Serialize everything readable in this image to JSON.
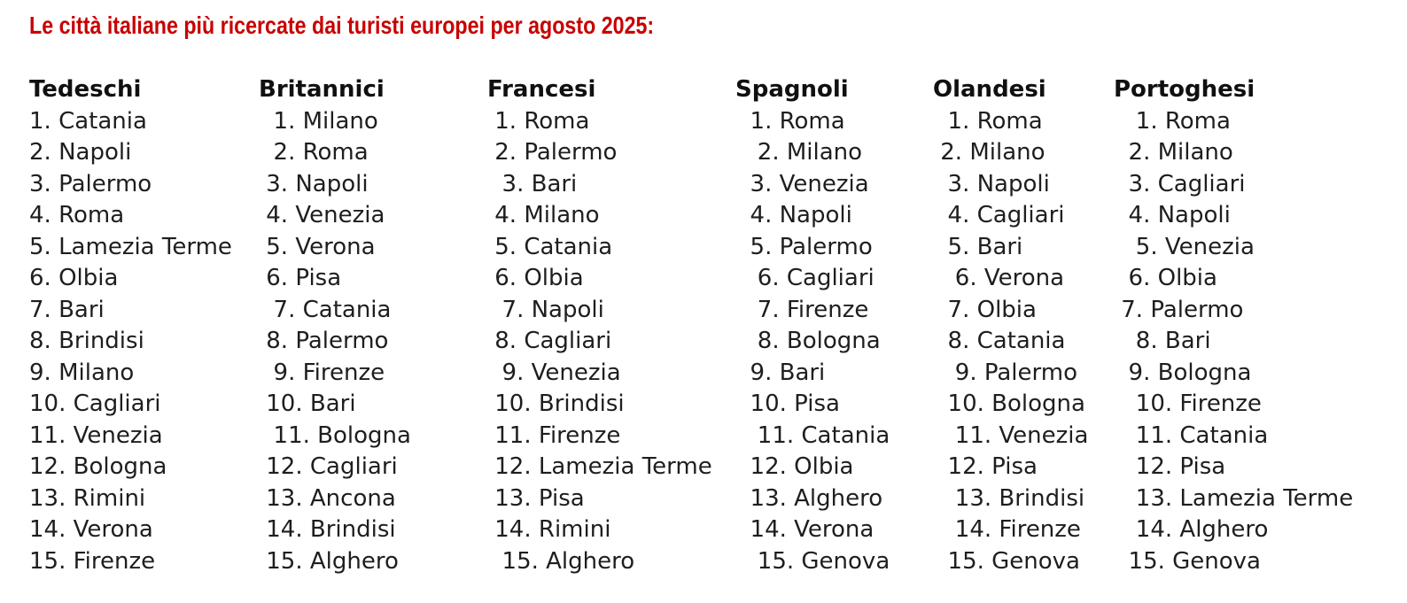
{
  "title": "Le città italiane più ricercate dai turisti europei per agosto 2025:",
  "colors": {
    "title_red": "#c80000",
    "body_text": "#1e1e1e",
    "background": "#ffffff"
  },
  "columns": [
    {
      "header": "Tedeschi",
      "items": [
        "1. Catania",
        "2. Napoli",
        "3. Palermo",
        "4. Roma",
        "5. Lamezia Terme",
        "6. Olbia",
        "7. Bari",
        "8. Brindisi",
        "9. Milano",
        "10. Cagliari",
        "11. Venezia",
        "12. Bologna",
        "13. Rimini",
        "14. Verona",
        "15. Firenze"
      ]
    },
    {
      "header": "Britannici",
      "items": [
        "  1. Milano",
        "  2. Roma",
        " 3. Napoli",
        " 4. Venezia",
        " 5. Verona",
        " 6. Pisa",
        "  7. Catania",
        " 8. Palermo",
        "  9. Firenze",
        " 10. Bari",
        "  11. Bologna",
        " 12. Cagliari",
        " 13. Ancona",
        " 14. Brindisi",
        " 15. Alghero"
      ]
    },
    {
      "header": "Francesi",
      "items": [
        " 1. Roma",
        " 2. Palermo",
        "  3. Bari",
        " 4. Milano",
        " 5. Catania",
        " 6. Olbia",
        "  7. Napoli",
        " 8. Cagliari",
        "  9. Venezia",
        " 10. Brindisi",
        " 11. Firenze",
        " 12. Lamezia Terme",
        " 13. Pisa",
        " 14. Rimini",
        "  15. Alghero"
      ]
    },
    {
      "header": "Spagnoli",
      "items": [
        "  1. Roma",
        "   2. Milano",
        "  3. Venezia",
        "  4. Napoli",
        "  5. Palermo",
        "   6. Cagliari",
        "   7. Firenze",
        "   8. Bologna",
        "  9. Bari",
        "  10. Pisa",
        "   11. Catania",
        "  12. Olbia",
        "  13. Alghero",
        "  14. Verona",
        "   15. Genova"
      ]
    },
    {
      "header": "Olandesi",
      "items": [
        "  1. Roma",
        " 2. Milano",
        "  3. Napoli",
        "  4. Cagliari",
        "  5. Bari",
        "   6. Verona",
        "  7. Olbia",
        "  8. Catania",
        "   9. Palermo",
        "  10. Bologna",
        "   11. Venezia",
        "  12. Pisa",
        "   13. Brindisi",
        "   14. Firenze",
        "  15. Genova"
      ]
    },
    {
      "header": "Portoghesi",
      "items": [
        "   1. Roma",
        "  2. Milano",
        "  3. Cagliari",
        "  4. Napoli",
        "   5. Venezia",
        "  6. Olbia",
        " 7. Palermo",
        "   8. Bari",
        "  9. Bologna",
        "   10. Firenze",
        "   11. Catania",
        "   12. Pisa",
        "   13. Lamezia Terme",
        "   14. Alghero",
        "  15. Genova"
      ]
    }
  ]
}
